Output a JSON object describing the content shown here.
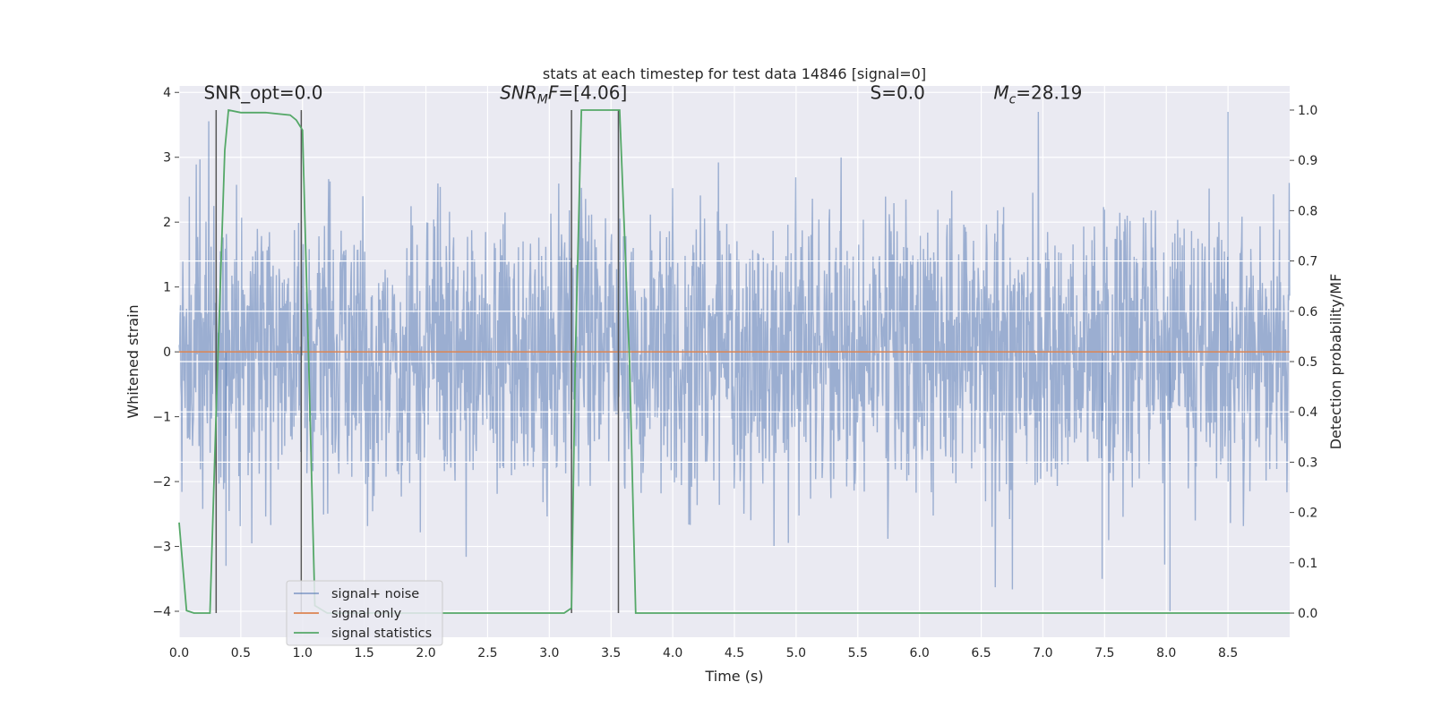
{
  "chart_data": {
    "type": "line",
    "title": "stats at each timestep for test data 14846 [signal=0]",
    "xlabel": "Time (s)",
    "ylabel": "Whitened strain",
    "y2label": "Detection probability/MF",
    "xlim": [
      0.0,
      9.0
    ],
    "ylim": [
      -4.4,
      4.1
    ],
    "y2lim": [
      -0.048,
      1.048
    ],
    "xticks": [
      0.0,
      0.5,
      1.0,
      1.5,
      2.0,
      2.5,
      3.0,
      3.5,
      4.0,
      4.5,
      5.0,
      5.5,
      6.0,
      6.5,
      7.0,
      7.5,
      8.0,
      8.5
    ],
    "xtick_labels": [
      "0.0",
      "0.5",
      "1.0",
      "1.5",
      "2.0",
      "2.5",
      "3.0",
      "3.5",
      "4.0",
      "4.5",
      "5.0",
      "5.5",
      "6.0",
      "6.5",
      "7.0",
      "7.5",
      "8.0",
      "8.5"
    ],
    "yticks": [
      -4,
      -3,
      -2,
      -1,
      0,
      1,
      2,
      3,
      4
    ],
    "ytick_labels": [
      "−4",
      "−3",
      "−2",
      "−1",
      "0",
      "1",
      "2",
      "3",
      "4"
    ],
    "y2ticks": [
      0.0,
      0.1,
      0.2,
      0.3,
      0.4,
      0.5,
      0.6,
      0.7,
      0.8,
      0.9,
      1.0
    ],
    "y2tick_labels": [
      "0.0",
      "0.1",
      "0.2",
      "0.3",
      "0.4",
      "0.5",
      "0.6",
      "0.7",
      "0.8",
      "0.9",
      "1.0"
    ],
    "grid": true,
    "legend_placement": "lower-left",
    "series": [
      {
        "name": "signal+ noise",
        "axis": "left",
        "color": "#4c72b0",
        "kind": "noise",
        "x_range": [
          0.0,
          9.0
        ],
        "typical_amplitude": 1.1,
        "max_value": 3.7,
        "min_value": -4.0
      },
      {
        "name": "signal only",
        "axis": "left",
        "color": "#dd8452",
        "x": [
          0.0,
          9.0
        ],
        "y": [
          0.0,
          0.0
        ]
      },
      {
        "name": "signal statistics",
        "axis": "right",
        "color": "#55a868",
        "x": [
          0.0,
          0.06,
          0.12,
          0.25,
          0.3,
          0.37,
          0.4,
          0.5,
          0.7,
          0.9,
          0.95,
          1.0,
          1.05,
          1.1,
          1.2,
          3.12,
          3.18,
          3.21,
          3.26,
          3.5,
          3.57,
          3.65,
          3.7,
          9.0
        ],
        "y": [
          0.18,
          0.005,
          0.0,
          0.0,
          0.4,
          0.92,
          1.0,
          0.995,
          0.995,
          0.99,
          0.98,
          0.96,
          0.5,
          0.015,
          0.0,
          0.0,
          0.01,
          0.5,
          1.0,
          1.0,
          1.0,
          0.5,
          0.0,
          0.0
        ]
      }
    ],
    "vertical_markers": [
      0.3,
      0.99,
      3.18,
      3.56
    ],
    "horizontal_lines_right_axis": [
      0.5,
      0.6,
      0.7,
      0.4,
      0.3
    ],
    "annotations": [
      {
        "text": "SNR_opt=0.0",
        "x": 0.2,
        "y": 3.9
      },
      {
        "text": "SNR_MF=[4.06]",
        "x": 2.6,
        "y": 3.9
      },
      {
        "text": "S=0.0",
        "x": 5.6,
        "y": 3.9
      },
      {
        "text": "M_c=28.19",
        "x": 6.6,
        "y": 3.9
      }
    ],
    "colors": {
      "plot_background": "#eaeaf2",
      "grid": "#ffffff",
      "marker": "#555555"
    }
  }
}
